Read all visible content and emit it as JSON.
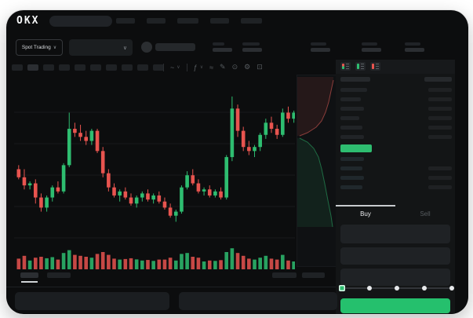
{
  "colors": {
    "up_green": "#2ebd70",
    "down_red": "#e8544f",
    "buy_button_green": "#25c06d",
    "window_bg": "#0c0d0e",
    "panel_bg": "#131516"
  },
  "header": {
    "logo": "OKX",
    "search_placeholder": "",
    "nav_placeholder_widths": [
      24,
      24,
      27,
      24,
      27
    ]
  },
  "subheader": {
    "market_selector_label": "Spot Trading",
    "chevron_glyph": "∨",
    "stats_placeholders": [
      {
        "x": 263,
        "label_w": 15,
        "value_w": 25
      },
      {
        "x": 301,
        "label_w": 22,
        "value_w": 25
      },
      {
        "x": 388,
        "label_w": 20,
        "value_w": 25
      },
      {
        "x": 453,
        "label_w": 20,
        "value_w": 25
      },
      {
        "x": 508,
        "label_w": 20,
        "value_w": 25
      }
    ]
  },
  "toolbar": {
    "timeframe_count": 10,
    "active_timeframe_index": 1,
    "tools": [
      {
        "type": "divider"
      },
      {
        "type": "tool",
        "name": "chart-type-icon",
        "glyph": "~",
        "chevron": true
      },
      {
        "type": "divider"
      },
      {
        "type": "tool",
        "name": "indicators-icon",
        "glyph": "ƒ",
        "chevron": true
      },
      {
        "type": "tool",
        "name": "line-style-icon",
        "glyph": "≈"
      },
      {
        "type": "tool",
        "name": "draw-icon",
        "glyph": "✎"
      },
      {
        "type": "tool",
        "name": "camera-icon",
        "glyph": "⊙"
      },
      {
        "type": "tool",
        "name": "settings-icon",
        "glyph": "⚙"
      },
      {
        "type": "tool",
        "name": "fullscreen-icon",
        "glyph": "⊡"
      }
    ]
  },
  "order_book": {
    "view_icons": [
      {
        "name": "orderbook-view-both-icon",
        "mark": "split"
      },
      {
        "name": "orderbook-view-bids-icon",
        "mark": "green"
      },
      {
        "name": "orderbook-view-asks-icon",
        "mark": "red"
      }
    ],
    "header_pills": {
      "left_w": 38,
      "right_w": 35
    },
    "ask_rows": [
      {
        "left_w": 34,
        "right_w": 30
      },
      {
        "left_w": 26,
        "right_w": 30
      },
      {
        "left_w": 30,
        "right_w": 30
      },
      {
        "left_w": 24,
        "right_w": 30
      },
      {
        "left_w": 28,
        "right_w": 30
      },
      {
        "left_w": 30,
        "right_w": 30
      }
    ],
    "bid_rows": [
      {
        "left_w": 30,
        "right_w": 0
      },
      {
        "left_w": 28,
        "right_w": 30
      },
      {
        "left_w": 30,
        "right_w": 30
      },
      {
        "left_w": 28,
        "right_w": 30
      }
    ]
  },
  "trade_form": {
    "buy_tab_label": "Buy",
    "sell_tab_label": "Sell",
    "field_heights": [
      24,
      22,
      22
    ],
    "slider_positions": 5,
    "slider_value_index": 0
  },
  "chart_data": {
    "type": "candlestick",
    "title": "",
    "ylim": [
      20,
      97
    ],
    "grid": true,
    "colors": {
      "up": "#2ebd70",
      "down": "#e8544f"
    },
    "ohlc": [
      [
        54,
        56,
        49,
        50
      ],
      [
        50,
        54,
        44,
        46
      ],
      [
        46,
        48,
        44,
        47
      ],
      [
        47,
        49,
        37,
        40
      ],
      [
        40,
        42,
        33,
        35
      ],
      [
        35,
        41,
        33,
        40
      ],
      [
        40,
        46,
        38,
        45
      ],
      [
        45,
        48,
        42,
        43
      ],
      [
        43,
        57,
        42,
        56
      ],
      [
        56,
        82,
        55,
        74
      ],
      [
        74,
        77,
        70,
        72
      ],
      [
        72,
        76,
        68,
        70
      ],
      [
        70,
        73,
        66,
        68
      ],
      [
        68,
        74,
        66,
        73
      ],
      [
        73,
        74,
        62,
        63
      ],
      [
        63,
        65,
        50,
        52
      ],
      [
        52,
        54,
        43,
        45
      ],
      [
        45,
        47,
        40,
        41
      ],
      [
        41,
        44,
        38,
        43
      ],
      [
        43,
        45,
        39,
        40
      ],
      [
        40,
        42,
        36,
        37
      ],
      [
        37,
        41,
        35,
        40
      ],
      [
        40,
        43,
        38,
        42
      ],
      [
        42,
        44,
        38,
        39
      ],
      [
        39,
        42,
        37,
        41
      ],
      [
        41,
        43,
        37,
        38
      ],
      [
        38,
        40,
        34,
        35
      ],
      [
        35,
        37,
        30,
        31
      ],
      [
        31,
        34,
        28,
        33
      ],
      [
        33,
        46,
        32,
        45
      ],
      [
        45,
        53,
        44,
        51
      ],
      [
        51,
        54,
        46,
        47
      ],
      [
        47,
        49,
        42,
        43
      ],
      [
        43,
        45,
        41,
        44
      ],
      [
        44,
        46,
        40,
        41
      ],
      [
        41,
        44,
        40,
        43
      ],
      [
        43,
        45,
        39,
        40
      ],
      [
        40,
        61,
        39,
        60
      ],
      [
        60,
        90,
        58,
        84
      ],
      [
        84,
        86,
        70,
        73
      ],
      [
        73,
        75,
        63,
        65
      ],
      [
        65,
        68,
        61,
        63
      ],
      [
        63,
        66,
        60,
        65
      ],
      [
        65,
        72,
        63,
        71
      ],
      [
        71,
        79,
        69,
        77
      ],
      [
        77,
        80,
        72,
        74
      ],
      [
        74,
        76,
        69,
        71
      ],
      [
        71,
        84,
        70,
        82
      ],
      [
        82,
        85,
        77,
        79
      ],
      [
        79,
        83,
        77,
        82
      ]
    ],
    "volumes": [
      40,
      55,
      30,
      45,
      50,
      42,
      48,
      35,
      70,
      85,
      60,
      55,
      50,
      45,
      65,
      75,
      60,
      40,
      35,
      38,
      42,
      36,
      30,
      33,
      28,
      35,
      35,
      45,
      30,
      65,
      70,
      50,
      45,
      25,
      30,
      28,
      32,
      75,
      95,
      70,
      55,
      40,
      35,
      45,
      55,
      40,
      35,
      60,
      30,
      25
    ],
    "depth": {
      "ask_line": [
        [
          46,
          6
        ],
        [
          43,
          20
        ],
        [
          40,
          34
        ],
        [
          36,
          47
        ],
        [
          31,
          58
        ],
        [
          24,
          66
        ],
        [
          13,
          73
        ],
        [
          3,
          77
        ]
      ],
      "ask_fill": [
        [
          0,
          2
        ],
        [
          46,
          2
        ],
        [
          46,
          6
        ],
        [
          43,
          20
        ],
        [
          40,
          34
        ],
        [
          36,
          47
        ],
        [
          31,
          58
        ],
        [
          24,
          66
        ],
        [
          13,
          73
        ],
        [
          3,
          77
        ],
        [
          0,
          77
        ]
      ],
      "bid_line": [
        [
          3,
          80
        ],
        [
          13,
          85
        ],
        [
          21,
          93
        ],
        [
          27,
          104
        ],
        [
          31,
          119
        ],
        [
          35,
          138
        ],
        [
          39,
          159
        ],
        [
          43,
          179
        ],
        [
          45,
          193
        ]
      ],
      "bid_fill": [
        [
          0,
          80
        ],
        [
          3,
          80
        ],
        [
          13,
          85
        ],
        [
          21,
          93
        ],
        [
          27,
          104
        ],
        [
          31,
          119
        ],
        [
          35,
          138
        ],
        [
          39,
          159
        ],
        [
          43,
          179
        ],
        [
          45,
          193
        ],
        [
          0,
          193
        ]
      ]
    }
  },
  "bottom_bar": {
    "tab_placeholder_widths": [
      23,
      30
    ],
    "right_pill_widths": [
      31,
      29
    ],
    "panel_widths": [
      197,
      202
    ]
  }
}
